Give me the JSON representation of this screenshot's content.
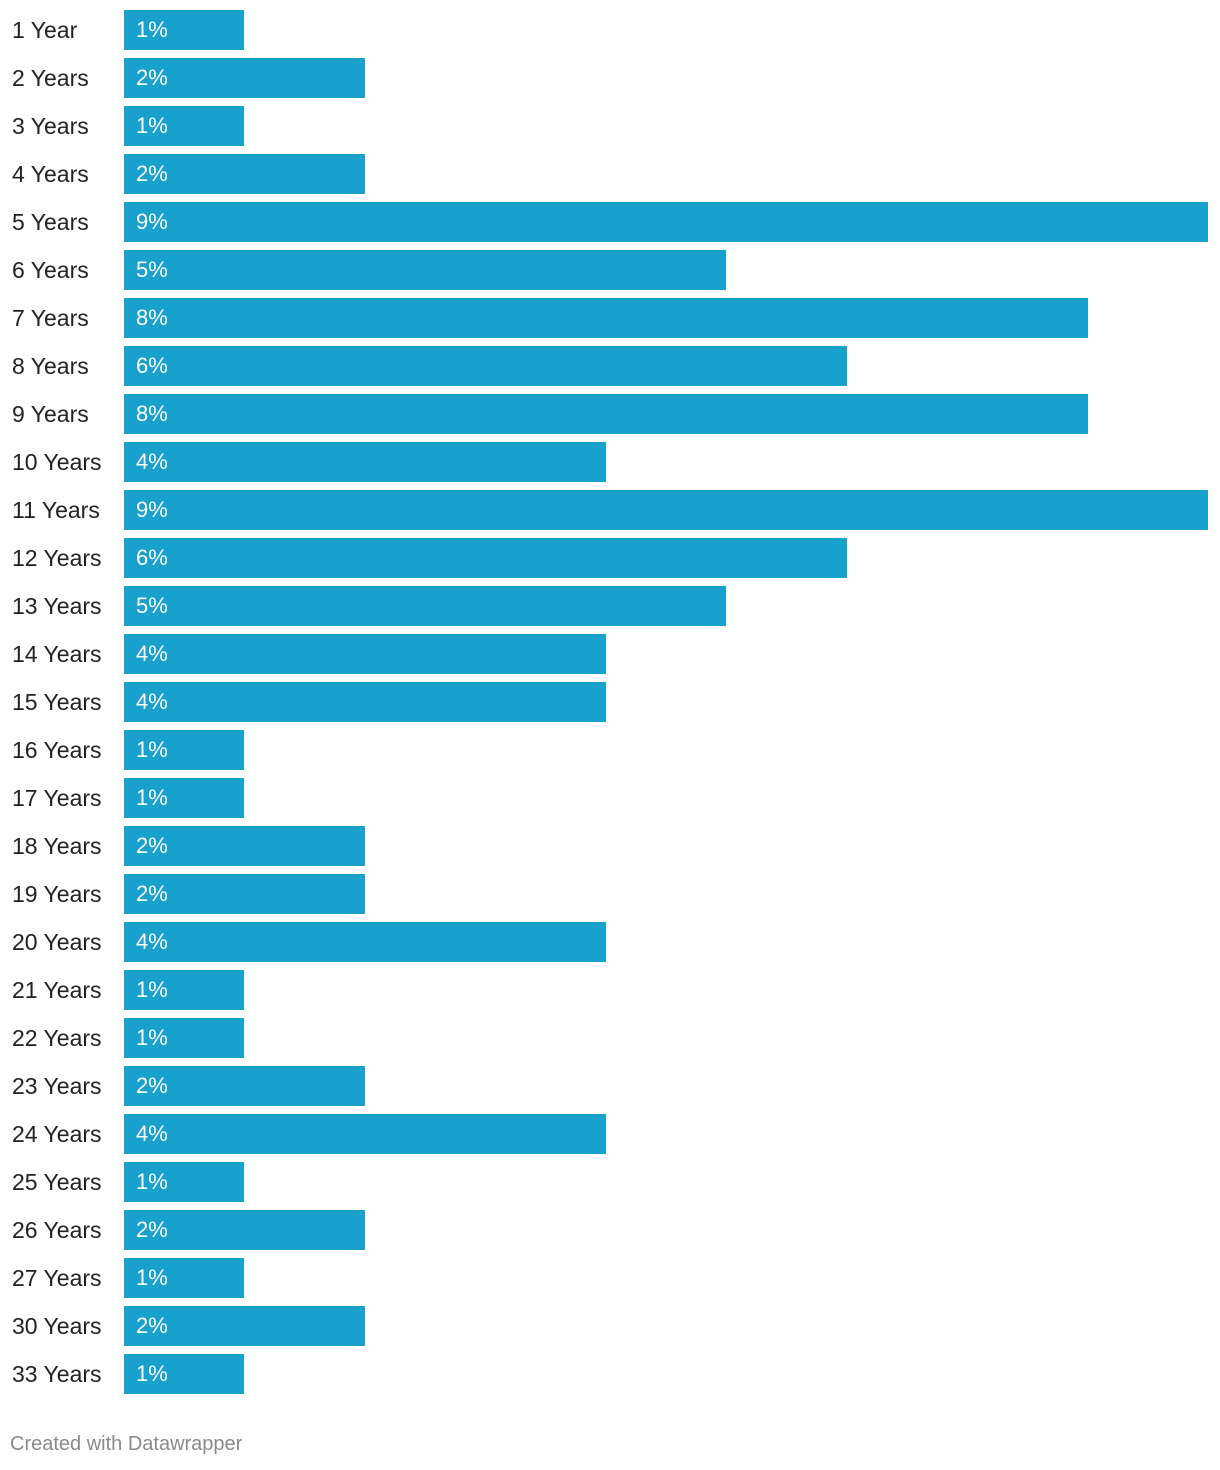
{
  "chart_data": {
    "type": "bar",
    "orientation": "horizontal",
    "title": "",
    "xlabel": "",
    "ylabel": "",
    "bar_color": "#18a1cd",
    "xlim": [
      0,
      9
    ],
    "grid": false,
    "legend": "none",
    "categories": [
      "1 Year",
      "2 Years",
      "3 Years",
      "4 Years",
      "5 Years",
      "6 Years",
      "7 Years",
      "8 Years",
      "9 Years",
      "10 Years",
      "11 Years",
      "12 Years",
      "13 Years",
      "14 Years",
      "15 Years",
      "16 Years",
      "17 Years",
      "18 Years",
      "19 Years",
      "20 Years",
      "21 Years",
      "22 Years",
      "23 Years",
      "24 Years",
      "25 Years",
      "26 Years",
      "27 Years",
      "30 Years",
      "33 Years"
    ],
    "values": [
      1,
      2,
      1,
      2,
      9,
      5,
      8,
      6,
      8,
      4,
      9,
      6,
      5,
      4,
      4,
      1,
      1,
      2,
      2,
      4,
      1,
      1,
      2,
      4,
      1,
      2,
      1,
      2,
      1
    ],
    "value_labels": [
      "1%",
      "2%",
      "1%",
      "2%",
      "9%",
      "5%",
      "8%",
      "6%",
      "8%",
      "4%",
      "9%",
      "6%",
      "5%",
      "4%",
      "4%",
      "1%",
      "1%",
      "2%",
      "2%",
      "4%",
      "1%",
      "1%",
      "2%",
      "4%",
      "1%",
      "2%",
      "1%",
      "2%",
      "1%"
    ]
  },
  "footer": {
    "credit": "Created with Datawrapper"
  }
}
